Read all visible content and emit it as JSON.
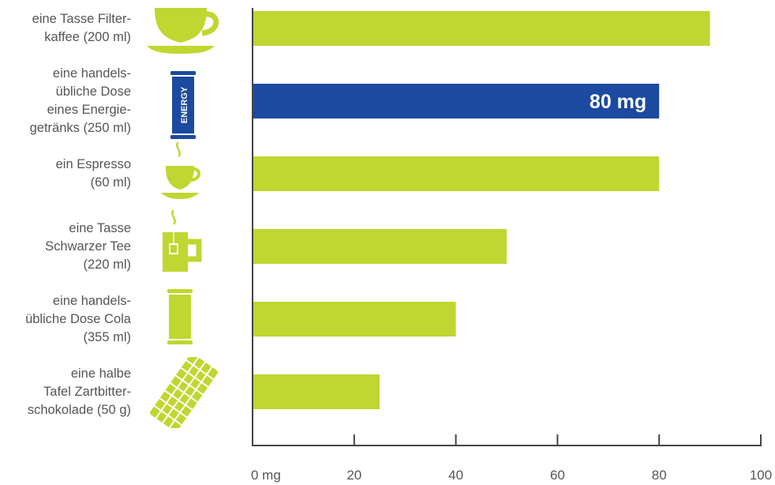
{
  "chart_data": {
    "type": "bar",
    "orientation": "horizontal",
    "categories": [
      "eine Tasse Filter-\nkaffee (200 ml)",
      "eine handels-\nübliche Dose\neines Energie-\ngetränks (250 ml)",
      "ein Espresso\n(60 ml)",
      "eine Tasse\nSchwarzer Tee\n(220 ml)",
      "eine handels-\nübliche Dose Cola\n(355 ml)",
      "eine halbe\nTafel Zartbitter-\nschokolade (50 g)"
    ],
    "values": [
      90,
      80,
      80,
      50,
      40,
      25
    ],
    "highlight_index": 1,
    "highlight_label": "80 mg",
    "icons": [
      "coffee-cup-icon",
      "energy-drink-can-icon",
      "espresso-cup-icon",
      "tea-mug-icon",
      "cola-can-icon",
      "chocolate-bar-icon"
    ],
    "can_text": "ENERGY",
    "xlim": [
      0,
      100
    ],
    "xticks": [
      0,
      20,
      40,
      60,
      80,
      100
    ],
    "xtick_labels": [
      "0 mg",
      "20",
      "40",
      "60",
      "80",
      "100"
    ],
    "grid": false,
    "colors": {
      "bar": "#bfd730",
      "highlight": "#1b4aa0",
      "axis": "#444444",
      "label": "#555555"
    }
  }
}
